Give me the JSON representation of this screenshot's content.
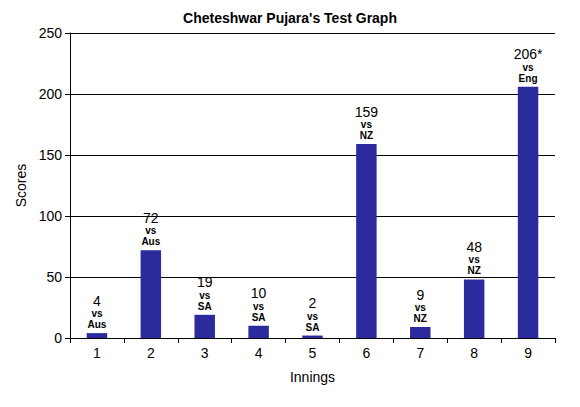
{
  "chart_data": {
    "type": "bar",
    "title": "Cheteshwar Pujara's Test Graph",
    "x_label": "Innings",
    "y_label": "Scores",
    "categories": [
      "1",
      "2",
      "3",
      "4",
      "5",
      "6",
      "7",
      "8",
      "9"
    ],
    "values": [
      4,
      72,
      19,
      10,
      2,
      159,
      9,
      48,
      206
    ],
    "value_labels": [
      "4",
      "72",
      "19",
      "10",
      "2",
      "159",
      "9",
      "48",
      "206*"
    ],
    "annotations": [
      "vs Aus",
      "vs Aus",
      "vs SA",
      "vs SA",
      "vs SA",
      "vs NZ",
      "vs NZ",
      "vs NZ",
      "vs Eng"
    ],
    "color": "#2b2b9e",
    "ylim": [
      0,
      250
    ],
    "yticks": [
      0,
      50,
      100,
      150,
      200,
      250
    ],
    "grid": true,
    "data_labels": true
  }
}
